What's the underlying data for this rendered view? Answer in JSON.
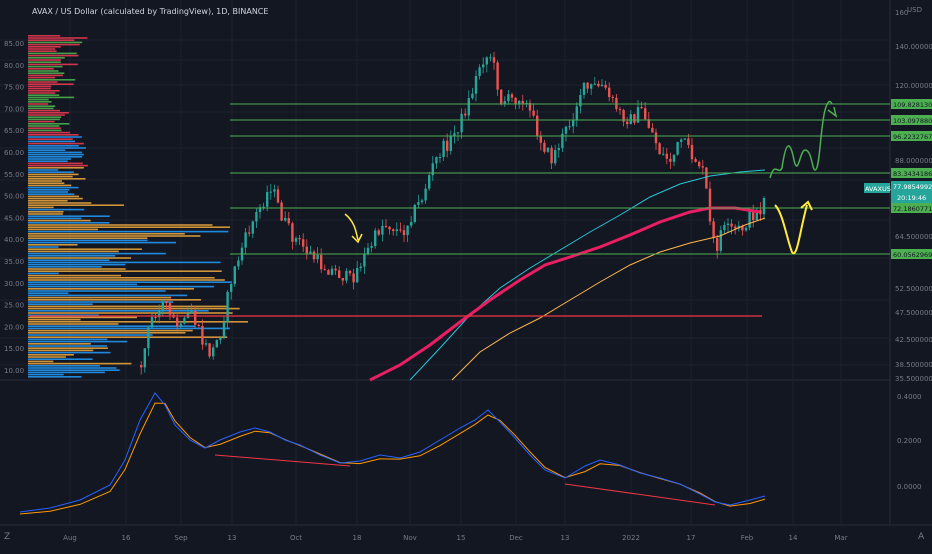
{
  "header": {
    "title": "AVAX / US Dollar (calculated by TradingView), 1D, BINANCE"
  },
  "price_axis": {
    "currency": "USD",
    "labels": [
      "160",
      "140.0000000",
      "120.0000000",
      "88.0000000",
      "64.5000000",
      "52.5000000",
      "47.5000000",
      "42.5000000",
      "38.5000000",
      "35.5000000"
    ],
    "level_tags": [
      "109.8281303",
      "103.0978806",
      "96.2232767",
      "83.3434186",
      "72.1860771",
      "60.0562969"
    ],
    "current_symbol": "AVAXUSD",
    "current_price": "77.9854992",
    "countdown": "20:19:46"
  },
  "profile_axis": {
    "labels": [
      "85.00",
      "80.00",
      "75.00",
      "70.00",
      "65.00",
      "60.00",
      "55.00",
      "50.00",
      "45.00",
      "40.00",
      "35.00",
      "30.00",
      "25.00",
      "20.00",
      "15.00",
      "10.00"
    ]
  },
  "oscillator_axis": {
    "labels": [
      "0.4000",
      "0.2000",
      "0.0000"
    ]
  },
  "time_axis": {
    "labels": [
      "Aug",
      "16",
      "Sep",
      "13",
      "Oct",
      "18",
      "Nov",
      "15",
      "Dec",
      "13",
      "2022",
      "17",
      "Feb",
      "14",
      "Mar"
    ]
  },
  "toolbar": {
    "goto_icon_label": "Z",
    "auto_icon_label": "A"
  },
  "colors": {
    "background": "#131722",
    "bull_candle": "#26a69a",
    "bear_candle": "#ef5350",
    "hline_green": "#4caf50",
    "hline_red": "#f23645",
    "ma_pink": "#e91e63",
    "ma_teal": "#26c6da",
    "ma_orange": "#ffb74d",
    "drawing_yellow": "#ffeb3b",
    "drawing_green": "#4caf50",
    "osc_blue": "#2962ff",
    "osc_orange": "#ff9800",
    "price_tag": "#26a69a"
  }
}
